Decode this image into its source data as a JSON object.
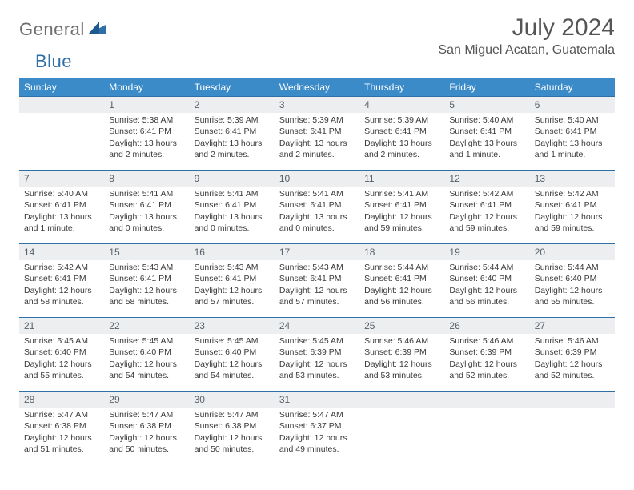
{
  "brand": {
    "text1": "General",
    "text2": "Blue"
  },
  "title": "July 2024",
  "location": "San Miguel Acatan, Guatemala",
  "colors": {
    "header_bg": "#3b8bc8",
    "header_fg": "#ffffff",
    "daynum_bg": "#eceeef",
    "rule": "#2f6fa7",
    "text": "#333333",
    "brand_gray": "#6e6e6e",
    "brand_blue": "#2f6fa7"
  },
  "weekdays": [
    "Sunday",
    "Monday",
    "Tuesday",
    "Wednesday",
    "Thursday",
    "Friday",
    "Saturday"
  ],
  "start_blank": 1,
  "days": [
    {
      "n": 1,
      "sr": "5:38 AM",
      "ss": "6:41 PM",
      "dl": "13 hours and 2 minutes."
    },
    {
      "n": 2,
      "sr": "5:39 AM",
      "ss": "6:41 PM",
      "dl": "13 hours and 2 minutes."
    },
    {
      "n": 3,
      "sr": "5:39 AM",
      "ss": "6:41 PM",
      "dl": "13 hours and 2 minutes."
    },
    {
      "n": 4,
      "sr": "5:39 AM",
      "ss": "6:41 PM",
      "dl": "13 hours and 2 minutes."
    },
    {
      "n": 5,
      "sr": "5:40 AM",
      "ss": "6:41 PM",
      "dl": "13 hours and 1 minute."
    },
    {
      "n": 6,
      "sr": "5:40 AM",
      "ss": "6:41 PM",
      "dl": "13 hours and 1 minute."
    },
    {
      "n": 7,
      "sr": "5:40 AM",
      "ss": "6:41 PM",
      "dl": "13 hours and 1 minute."
    },
    {
      "n": 8,
      "sr": "5:41 AM",
      "ss": "6:41 PM",
      "dl": "13 hours and 0 minutes."
    },
    {
      "n": 9,
      "sr": "5:41 AM",
      "ss": "6:41 PM",
      "dl": "13 hours and 0 minutes."
    },
    {
      "n": 10,
      "sr": "5:41 AM",
      "ss": "6:41 PM",
      "dl": "13 hours and 0 minutes."
    },
    {
      "n": 11,
      "sr": "5:41 AM",
      "ss": "6:41 PM",
      "dl": "12 hours and 59 minutes."
    },
    {
      "n": 12,
      "sr": "5:42 AM",
      "ss": "6:41 PM",
      "dl": "12 hours and 59 minutes."
    },
    {
      "n": 13,
      "sr": "5:42 AM",
      "ss": "6:41 PM",
      "dl": "12 hours and 59 minutes."
    },
    {
      "n": 14,
      "sr": "5:42 AM",
      "ss": "6:41 PM",
      "dl": "12 hours and 58 minutes."
    },
    {
      "n": 15,
      "sr": "5:43 AM",
      "ss": "6:41 PM",
      "dl": "12 hours and 58 minutes."
    },
    {
      "n": 16,
      "sr": "5:43 AM",
      "ss": "6:41 PM",
      "dl": "12 hours and 57 minutes."
    },
    {
      "n": 17,
      "sr": "5:43 AM",
      "ss": "6:41 PM",
      "dl": "12 hours and 57 minutes."
    },
    {
      "n": 18,
      "sr": "5:44 AM",
      "ss": "6:41 PM",
      "dl": "12 hours and 56 minutes."
    },
    {
      "n": 19,
      "sr": "5:44 AM",
      "ss": "6:40 PM",
      "dl": "12 hours and 56 minutes."
    },
    {
      "n": 20,
      "sr": "5:44 AM",
      "ss": "6:40 PM",
      "dl": "12 hours and 55 minutes."
    },
    {
      "n": 21,
      "sr": "5:45 AM",
      "ss": "6:40 PM",
      "dl": "12 hours and 55 minutes."
    },
    {
      "n": 22,
      "sr": "5:45 AM",
      "ss": "6:40 PM",
      "dl": "12 hours and 54 minutes."
    },
    {
      "n": 23,
      "sr": "5:45 AM",
      "ss": "6:40 PM",
      "dl": "12 hours and 54 minutes."
    },
    {
      "n": 24,
      "sr": "5:45 AM",
      "ss": "6:39 PM",
      "dl": "12 hours and 53 minutes."
    },
    {
      "n": 25,
      "sr": "5:46 AM",
      "ss": "6:39 PM",
      "dl": "12 hours and 53 minutes."
    },
    {
      "n": 26,
      "sr": "5:46 AM",
      "ss": "6:39 PM",
      "dl": "12 hours and 52 minutes."
    },
    {
      "n": 27,
      "sr": "5:46 AM",
      "ss": "6:39 PM",
      "dl": "12 hours and 52 minutes."
    },
    {
      "n": 28,
      "sr": "5:47 AM",
      "ss": "6:38 PM",
      "dl": "12 hours and 51 minutes."
    },
    {
      "n": 29,
      "sr": "5:47 AM",
      "ss": "6:38 PM",
      "dl": "12 hours and 50 minutes."
    },
    {
      "n": 30,
      "sr": "5:47 AM",
      "ss": "6:38 PM",
      "dl": "12 hours and 50 minutes."
    },
    {
      "n": 31,
      "sr": "5:47 AM",
      "ss": "6:37 PM",
      "dl": "12 hours and 49 minutes."
    }
  ],
  "labels": {
    "sunrise": "Sunrise: ",
    "sunset": "Sunset: ",
    "daylight": "Daylight: "
  }
}
